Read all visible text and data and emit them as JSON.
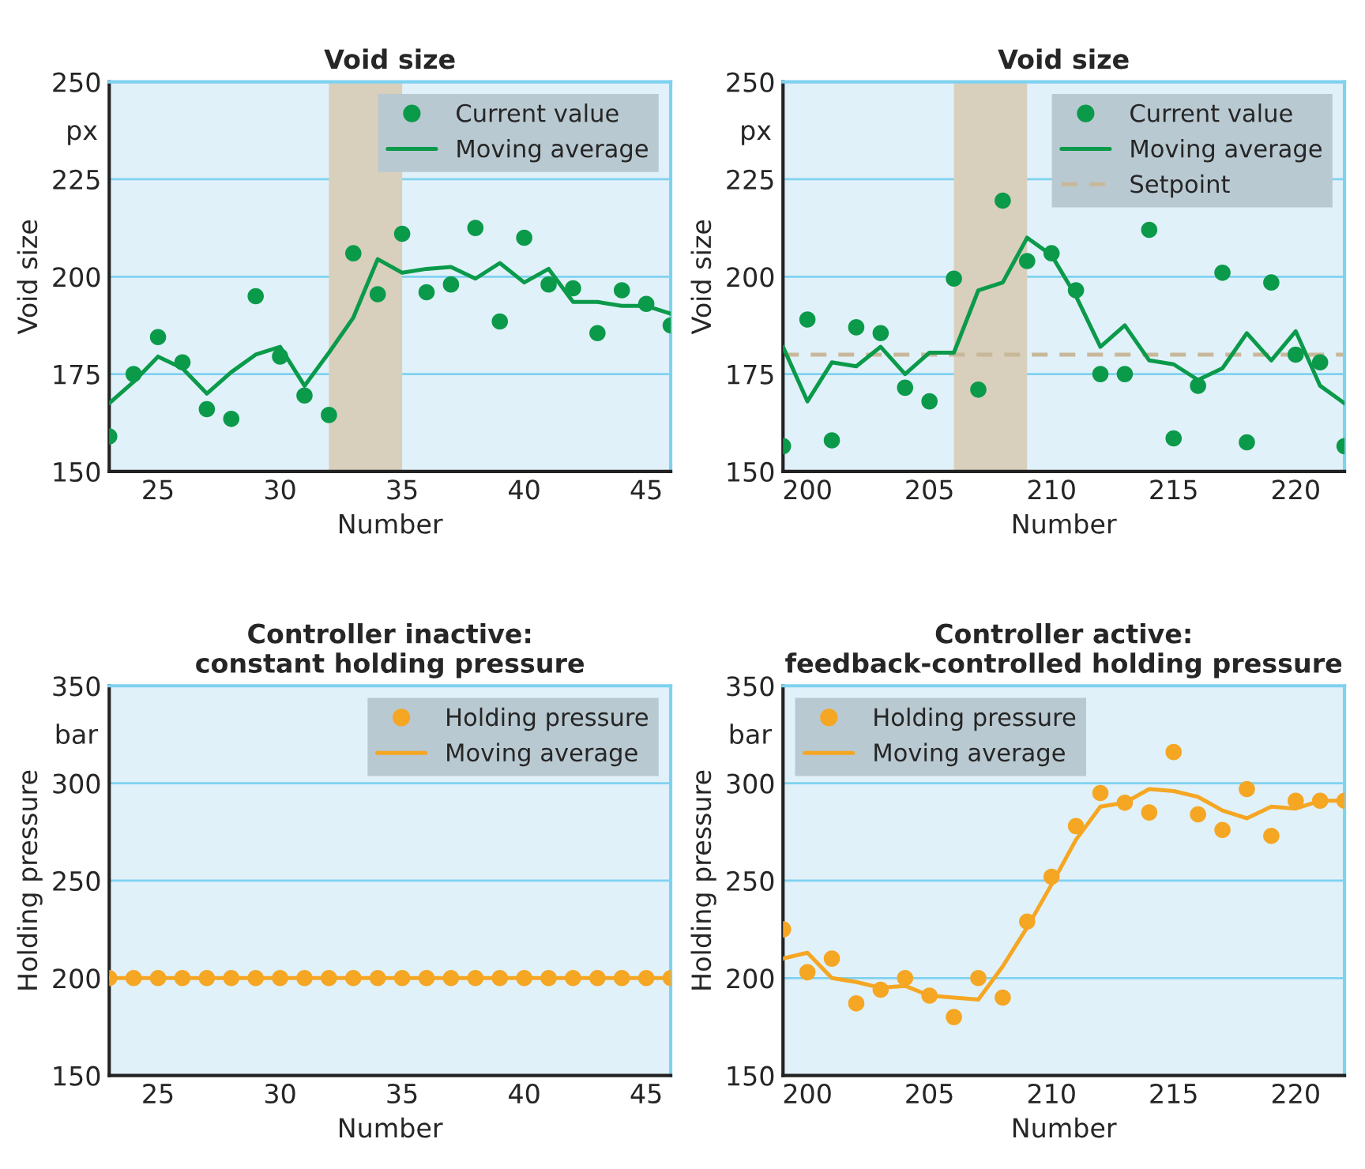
{
  "chart_data": [
    {
      "type": "line",
      "title": "Void size",
      "xlabel": "Number",
      "ylabel": "Void size",
      "xlim": [
        23,
        46
      ],
      "xticks": [
        25,
        30,
        35,
        40,
        45
      ],
      "ylim": [
        150,
        250
      ],
      "yticks": [
        150,
        175,
        200,
        225,
        250
      ],
      "grid": "y",
      "legend": "top right",
      "annotations": [
        "px"
      ],
      "x": [
        23,
        24,
        25,
        26,
        27,
        28,
        29,
        30,
        31,
        32,
        33,
        34,
        35,
        36,
        37,
        38,
        39,
        40,
        41,
        42,
        43,
        44,
        45,
        46
      ],
      "bands": [
        {
          "axis": "x",
          "from": 32,
          "to": 35,
          "color": "#d9cfbd"
        }
      ],
      "series": [
        {
          "name": "Current value",
          "type": "scatter",
          "marker": "circle",
          "color": "#0a9a4a",
          "values": [
            159,
            175,
            184.5,
            178,
            166,
            163.5,
            195,
            179.5,
            169.5,
            164.5,
            206,
            195.5,
            211,
            196,
            198,
            212.5,
            188.5,
            210,
            198,
            197,
            185.5,
            196.5,
            193,
            187.5
          ]
        },
        {
          "name": "Moving average",
          "type": "line",
          "line_style": "solid",
          "color": "#0a9a4a",
          "values": [
            167.5,
            173,
            179.5,
            176.5,
            170,
            175.5,
            180,
            182,
            172,
            180.5,
            189.5,
            204.5,
            201,
            202,
            202.5,
            199.5,
            203.5,
            198.5,
            202,
            193.5,
            193.5,
            192.5,
            192.5,
            190.5
          ]
        }
      ]
    },
    {
      "type": "line",
      "title": "Void size",
      "xlabel": "Number",
      "ylabel": "Void size",
      "xlim": [
        199,
        222
      ],
      "xticks": [
        200,
        205,
        210,
        215,
        220
      ],
      "ylim": [
        150,
        250
      ],
      "yticks": [
        150,
        175,
        200,
        225,
        250
      ],
      "grid": "y",
      "legend": "top right",
      "annotations": [
        "px"
      ],
      "x": [
        199,
        200,
        201,
        202,
        203,
        204,
        205,
        206,
        207,
        208,
        209,
        210,
        211,
        212,
        213,
        214,
        215,
        216,
        217,
        218,
        219,
        220,
        221,
        222
      ],
      "bands": [
        {
          "axis": "x",
          "from": 206,
          "to": 209,
          "color": "#d9cfbd"
        }
      ],
      "ref_lines": [
        {
          "axis": "y",
          "value": 180,
          "label": "Setpoint",
          "color": "#c8b89a",
          "line_style": "dashed"
        }
      ],
      "series": [
        {
          "name": "Current value",
          "type": "scatter",
          "marker": "circle",
          "color": "#0a9a4a",
          "values": [
            156.5,
            189,
            158,
            187,
            185.5,
            171.5,
            168,
            199.5,
            171,
            219.5,
            204,
            206,
            196.5,
            175,
            175,
            212,
            158.5,
            172,
            201,
            157.5,
            198.5,
            180,
            178,
            156.5
          ]
        },
        {
          "name": "Moving average",
          "type": "line",
          "line_style": "solid",
          "color": "#0a9a4a",
          "values": [
            182,
            168,
            178,
            177,
            182,
            175,
            180.5,
            180.5,
            196.5,
            198.5,
            210,
            205.5,
            195,
            182,
            187.5,
            178.5,
            177.5,
            173.5,
            176.5,
            185.5,
            178.5,
            186,
            172,
            167.5
          ]
        }
      ]
    },
    {
      "type": "line",
      "title": "Controller inactive:\nconstant holding pressure",
      "xlabel": "Number",
      "ylabel": "Holding pressure",
      "xlim": [
        23,
        46
      ],
      "xticks": [
        25,
        30,
        35,
        40,
        45
      ],
      "ylim": [
        150,
        350
      ],
      "yticks": [
        150,
        200,
        250,
        300,
        350
      ],
      "grid": "y",
      "legend": "top right",
      "annotations": [
        "bar"
      ],
      "x": [
        23,
        24,
        25,
        26,
        27,
        28,
        29,
        30,
        31,
        32,
        33,
        34,
        35,
        36,
        37,
        38,
        39,
        40,
        41,
        42,
        43,
        44,
        45,
        46
      ],
      "series": [
        {
          "name": "Holding pressure",
          "type": "scatter",
          "marker": "circle",
          "color": "#f5a623",
          "values": [
            200,
            200,
            200,
            200,
            200,
            200,
            200,
            200,
            200,
            200,
            200,
            200,
            200,
            200,
            200,
            200,
            200,
            200,
            200,
            200,
            200,
            200,
            200,
            200
          ]
        },
        {
          "name": "Moving average",
          "type": "line",
          "line_style": "solid",
          "color": "#f5a623",
          "values": [
            200,
            200,
            200,
            200,
            200,
            200,
            200,
            200,
            200,
            200,
            200,
            200,
            200,
            200,
            200,
            200,
            200,
            200,
            200,
            200,
            200,
            200,
            200,
            200
          ]
        }
      ]
    },
    {
      "type": "line",
      "title": "Controller active:\nfeedback-controlled holding pressure",
      "xlabel": "Number",
      "ylabel": "Holding pressure",
      "xlim": [
        199,
        222
      ],
      "xticks": [
        200,
        205,
        210,
        215,
        220
      ],
      "ylim": [
        150,
        350
      ],
      "yticks": [
        150,
        200,
        250,
        300,
        350
      ],
      "grid": "y",
      "legend": "top left",
      "annotations": [
        "bar"
      ],
      "x": [
        199,
        200,
        201,
        202,
        203,
        204,
        205,
        206,
        207,
        208,
        209,
        210,
        211,
        212,
        213,
        214,
        215,
        216,
        217,
        218,
        219,
        220,
        221,
        222
      ],
      "series": [
        {
          "name": "Holding pressure",
          "type": "scatter",
          "marker": "circle",
          "color": "#f5a623",
          "values": [
            225,
            203,
            210,
            187,
            194,
            200,
            191,
            180,
            200,
            190,
            229,
            252,
            278,
            295,
            290,
            285,
            316,
            284,
            276,
            297,
            273,
            291,
            291,
            291
          ]
        },
        {
          "name": "Moving average",
          "type": "line",
          "line_style": "solid",
          "color": "#f5a623",
          "values": [
            210,
            213,
            200,
            198,
            195,
            196,
            191,
            190,
            189,
            206,
            226,
            248,
            271,
            288,
            290,
            297,
            296,
            293,
            286,
            282,
            288,
            287,
            291,
            291
          ]
        }
      ]
    }
  ]
}
